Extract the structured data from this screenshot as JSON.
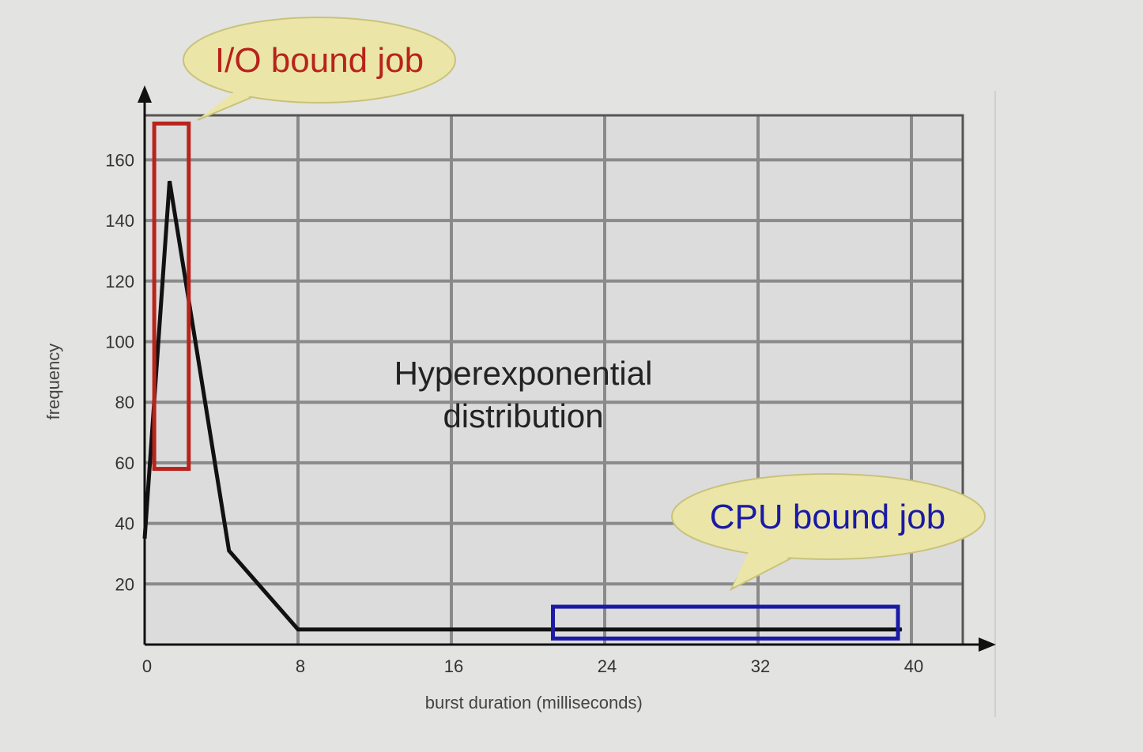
{
  "chart_data": {
    "type": "line",
    "title": "",
    "xlabel": "burst duration (milliseconds)",
    "ylabel": "frequency",
    "xlim": [
      0,
      42
    ],
    "ylim": [
      0,
      175
    ],
    "x_ticks": [
      0,
      8,
      16,
      24,
      32,
      40
    ],
    "y_ticks": [
      20,
      40,
      60,
      80,
      100,
      120,
      140,
      160
    ],
    "x": [
      0,
      1.3,
      4.4,
      8,
      16,
      24,
      32,
      39.5
    ],
    "series": [
      {
        "values": [
          35,
          153,
          31,
          5,
          5,
          5,
          5,
          5
        ]
      }
    ],
    "grid": true,
    "annotations": {
      "center_label": [
        "Hyperexponential",
        "distribution"
      ],
      "io_callout": "I/O bound job",
      "cpu_callout": "CPU bound job",
      "io_box_range": {
        "x": [
          0.5,
          2.3
        ],
        "y": [
          58,
          172
        ]
      },
      "cpu_box_range": {
        "x": [
          21.3,
          39.3
        ],
        "y": [
          2,
          12.5
        ]
      }
    },
    "colors": {
      "line": "#111111",
      "io": "#b8231c",
      "cpu": "#1a1aa6",
      "bubble": "#ebe6a8"
    }
  }
}
